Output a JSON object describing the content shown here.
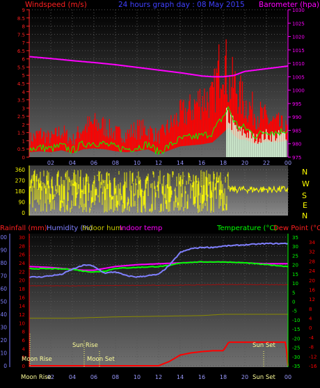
{
  "colors": {
    "wind": "#ff2020",
    "gust": "#ff0000",
    "avgwind": "#00ff00",
    "barometer": "#ff00ff",
    "direction": "#ffff00",
    "humidity": "#8080ff",
    "temperature": "#00ff00",
    "indoor_temp": "#ff00ff",
    "indoor_hum": "#c8c800",
    "dewpoint": "#ff0000",
    "rain": "#ff0000",
    "title": "#4040ff"
  },
  "header": {
    "windspeed_label": "Windspeed (m/s)",
    "title": "24 hours graph day : 08 May 2015",
    "barometer_label": "Barometer (hpa)"
  },
  "legend": {
    "rain": "Rainfall (mm)",
    "humidity": "Humidity (%)",
    "indoor_hum": "Indoor hum",
    "indoor_temp": "Indoor temp",
    "temperature": "Temperature (°C)",
    "dewpoint": "Dew Point (°C)"
  },
  "markers": {
    "moon_rise": "Moon Rise",
    "sun_rise": "Sun Rise",
    "moon_set": "Moon Set",
    "sun_set": "Sun Set",
    "bottom_moon_rise": "Moon Rise",
    "bottom_sun_set": "Sun Set"
  },
  "chart_data": [
    {
      "type": "line",
      "name": "wind-barometer",
      "x_ticks": [
        "02",
        "04",
        "06",
        "08",
        "10",
        "12",
        "14",
        "16",
        "18",
        "20",
        "22",
        "00"
      ],
      "left_ticks": [
        "0",
        "0.5",
        "1",
        "1.5",
        "2",
        "2.5",
        "3",
        "3.5",
        "4",
        "4.5",
        "5",
        "5.5",
        "6",
        "6.5",
        "7",
        "7.5",
        "8",
        "8.5",
        "9"
      ],
      "right_ticks": [
        "975",
        "980",
        "985",
        "990",
        "995",
        "1000",
        "1005",
        "1010",
        "1015",
        "1020",
        "1025",
        "1030"
      ],
      "ylim_left": [
        0,
        9
      ],
      "ylim_right": [
        975,
        1030
      ],
      "barometer": {
        "x": [
          0,
          2,
          4,
          6,
          8,
          10,
          12,
          14,
          16,
          17,
          18,
          19,
          20,
          22,
          24
        ],
        "y": [
          1012.5,
          1011.8,
          1011,
          1010.3,
          1009.5,
          1008.5,
          1007.5,
          1006.5,
          1005.3,
          1005,
          1005,
          1005.5,
          1007,
          1008,
          1009
        ]
      },
      "wind_gust_envelope": {
        "x": [
          0,
          1,
          2,
          3,
          4,
          5,
          6,
          7,
          8,
          9,
          10,
          11,
          12,
          13,
          14,
          15,
          16,
          17,
          18,
          18.5,
          19,
          19.5,
          20,
          21,
          22,
          23,
          24
        ],
        "y": [
          1.5,
          2,
          1.6,
          2.2,
          1.4,
          2.5,
          2.8,
          2.6,
          2,
          1.9,
          2.4,
          2.3,
          1.7,
          2.6,
          3.5,
          4,
          5,
          4.8,
          9,
          6,
          6.2,
          5.2,
          4.5,
          3.8,
          3.2,
          2.8,
          2.3
        ]
      },
      "wind_avg": {
        "x": [
          0,
          1,
          2,
          3,
          4,
          5,
          6,
          7,
          8,
          9,
          10,
          11,
          12,
          13,
          14,
          15,
          16,
          17,
          18,
          18.5,
          19,
          19.5,
          20,
          21,
          22,
          23,
          24
        ],
        "y": [
          0.5,
          0.6,
          0.5,
          0.7,
          0.4,
          0.8,
          0.9,
          0.8,
          0.6,
          0.5,
          0.6,
          0.8,
          0.3,
          0.7,
          1.1,
          1.2,
          1.3,
          1.5,
          2.5,
          3,
          2.2,
          1.8,
          1.8,
          1.3,
          1.6,
          1.5,
          1.7
        ]
      },
      "barometer_label": "Barometer (hpa)",
      "wind_label": "Windspeed (m/s)"
    },
    {
      "type": "scatter",
      "name": "wind-direction",
      "left_ticks": [
        "0",
        "90",
        "180",
        "270",
        "360"
      ],
      "right_labels": [
        "N",
        "W",
        "S",
        "E",
        "N"
      ],
      "ylim": [
        0,
        360
      ],
      "note_bands": {
        "x": [
          0,
          18.5,
          24
        ],
        "y_min": [
          0,
          140,
          140
        ],
        "y_max": [
          360,
          230,
          230
        ]
      }
    },
    {
      "type": "line",
      "name": "temperature-humidity-rain",
      "x_ticks": [
        "02",
        "04",
        "06",
        "08",
        "10",
        "12",
        "14",
        "16",
        "18",
        "20",
        "22",
        "00"
      ],
      "humidity_ticks": [
        "0",
        "10",
        "20",
        "30",
        "40",
        "50",
        "60",
        "70",
        "80",
        "90",
        "100"
      ],
      "rain_ticks": [
        "0",
        "2",
        "4",
        "6",
        "8",
        "10",
        "12",
        "14",
        "16",
        "18",
        "20",
        "22",
        "24",
        "26",
        "28",
        "30"
      ],
      "temp_ticks": [
        "-35",
        "-30",
        "-25",
        "-20",
        "-15",
        "-10",
        "-5",
        "0",
        "5",
        "10",
        "15",
        "20",
        "25",
        "30",
        "35"
      ],
      "dew_ticks": [
        "-16",
        "-12",
        "-8",
        "-4",
        "0",
        "4",
        "8",
        "12",
        "16",
        "20",
        "24",
        "28",
        "32",
        "34"
      ],
      "humidity": {
        "x": [
          0,
          1,
          2,
          3,
          4,
          5,
          5.5,
          6,
          7,
          8,
          9,
          10,
          11,
          12,
          13,
          14,
          15,
          16,
          17,
          18,
          20,
          22,
          24
        ],
        "y": [
          69,
          69,
          70,
          71,
          75,
          78,
          78.5,
          77,
          72,
          73,
          70,
          69,
          70,
          71,
          78,
          88,
          91,
          92,
          92,
          93,
          94,
          95,
          95
        ]
      },
      "temperature": {
        "x": [
          0,
          2,
          4,
          5,
          6,
          7,
          8,
          10,
          12,
          13,
          14,
          16,
          18,
          20,
          22,
          24
        ],
        "y": [
          17.8,
          17.8,
          17.5,
          16.5,
          16,
          16.5,
          18,
          18.5,
          19,
          19.5,
          21,
          21.5,
          21.5,
          21,
          20,
          19
        ]
      },
      "indoor_temp": {
        "x": [
          0,
          2,
          4,
          5,
          6,
          7,
          8,
          10,
          12,
          14,
          16,
          18,
          20,
          22,
          24
        ],
        "y": [
          19,
          18.5,
          17.5,
          17,
          17,
          18,
          19,
          20,
          20.5,
          21,
          21.5,
          21.5,
          21,
          20.5,
          20.5
        ]
      },
      "indoor_hum": {
        "x": [
          0,
          4,
          8,
          12,
          16,
          18,
          20,
          24
        ],
        "y": [
          37,
          37,
          38,
          38.5,
          39,
          40,
          40,
          40
        ]
      },
      "dewpoint": {
        "x": [
          0,
          4,
          8,
          12,
          16,
          18,
          20,
          24
        ],
        "y": [
          8.5,
          8.5,
          8.7,
          8.8,
          9,
          9.2,
          9.2,
          9
        ]
      },
      "rainfall": {
        "x": [
          0,
          12,
          13,
          14,
          15,
          16,
          17,
          18,
          18.5,
          19,
          20,
          22,
          23.8,
          24
        ],
        "y": [
          0,
          0,
          1,
          2.5,
          3,
          3.3,
          3.5,
          3.5,
          5.5,
          5.5,
          5.5,
          5.5,
          5.5,
          0
        ]
      },
      "labels": {
        "rainfall": "Rainfall (mm)",
        "humidity": "Humidity (%)",
        "indoor_hum": "Indoor hum",
        "indoor_temp": "Indoor temp",
        "temperature": "Temperature (°C)",
        "dewpoint": "Dew Point (°C)"
      }
    }
  ]
}
